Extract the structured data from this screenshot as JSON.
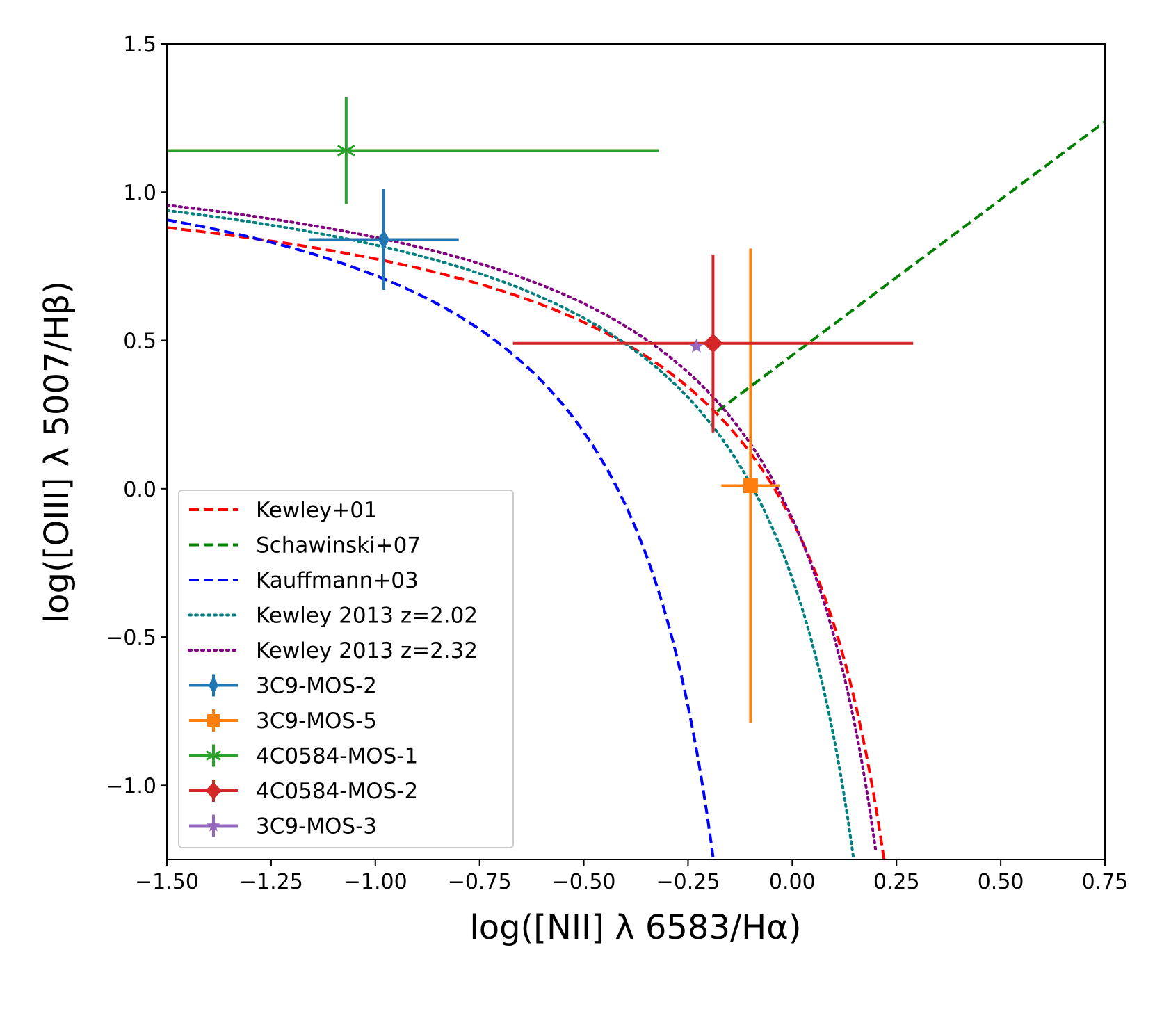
{
  "chart_data": {
    "type": "scatter",
    "title": "",
    "xlabel": "log([NII] λ 6583/Hα)",
    "ylabel": "log([OIII] λ 5007/Hβ)",
    "xlim": [
      -1.5,
      0.75
    ],
    "ylim": [
      -1.25,
      1.5
    ],
    "xticks": [
      -1.5,
      -1.25,
      -1.0,
      -0.75,
      -0.5,
      -0.25,
      0.0,
      0.25,
      0.5,
      0.75
    ],
    "xtick_labels": [
      "−1.50",
      "−1.25",
      "−1.00",
      "−0.75",
      "−0.50",
      "−0.25",
      "0.00",
      "0.25",
      "0.50",
      "0.75"
    ],
    "yticks": [
      -1.0,
      -0.5,
      0.0,
      0.5,
      1.0,
      1.5
    ],
    "ytick_labels": [
      "−1.0",
      "−0.5",
      "0.0",
      "0.5",
      "1.0",
      "1.5"
    ],
    "legend_position": "lower-left",
    "curves": [
      {
        "name": "Kewley+01",
        "color": "#ff0000",
        "style": "dashed",
        "formula": "0.61/(x-0.47)+1.19",
        "xmax": 0.22
      },
      {
        "name": "Schawinski+07",
        "color": "#008000",
        "style": "dashed",
        "formula": "1.05*x+0.45",
        "xmin": -0.18
      },
      {
        "name": "Kauffmann+03",
        "color": "#0000ff",
        "style": "dashed",
        "formula": "0.61/(x-0.05)+1.3",
        "xmax": -0.19
      },
      {
        "name": "Kewley 2013 z=2.02",
        "color": "#008080",
        "style": "dotted",
        "formula": "0.61/(x-0.02-0.1833*z)+1.2+0.03*z",
        "z": 2.02,
        "xmax": 0.15
      },
      {
        "name": "Kewley 2013 z=2.32",
        "color": "#800080",
        "style": "dotted",
        "formula": "0.61/(x-0.02-0.1833*z)+1.2+0.03*z",
        "z": 2.32,
        "xmax": 0.2
      }
    ],
    "points": [
      {
        "name": "3C9-MOS-2",
        "color": "#1f77b4",
        "marker": "thin_diamond",
        "x": -0.98,
        "y": 0.84,
        "xerr": [
          0.18,
          0.18
        ],
        "yerr": [
          0.17,
          0.17
        ]
      },
      {
        "name": "3C9-MOS-5",
        "color": "#ff7f0e",
        "marker": "square",
        "x": -0.1,
        "y": 0.01,
        "xerr": [
          0.07,
          0.07
        ],
        "yerr": [
          0.8,
          0.8
        ]
      },
      {
        "name": "4C0584-MOS-1",
        "color": "#2ca02c",
        "marker": "x-star",
        "x": -1.07,
        "y": 1.14,
        "xerr": [
          0.43,
          0.75
        ],
        "yerr": [
          0.18,
          0.18
        ]
      },
      {
        "name": "4C0584-MOS-2",
        "color": "#d62728",
        "marker": "diamond",
        "x": -0.19,
        "y": 0.49,
        "xerr": [
          0.48,
          0.48
        ],
        "yerr": [
          0.3,
          0.3
        ]
      },
      {
        "name": "3C9-MOS-3",
        "color": "#9467bd",
        "marker": "star",
        "x": -0.23,
        "y": 0.48,
        "xerr": [
          0,
          0
        ],
        "yerr": [
          0,
          0
        ]
      }
    ]
  }
}
